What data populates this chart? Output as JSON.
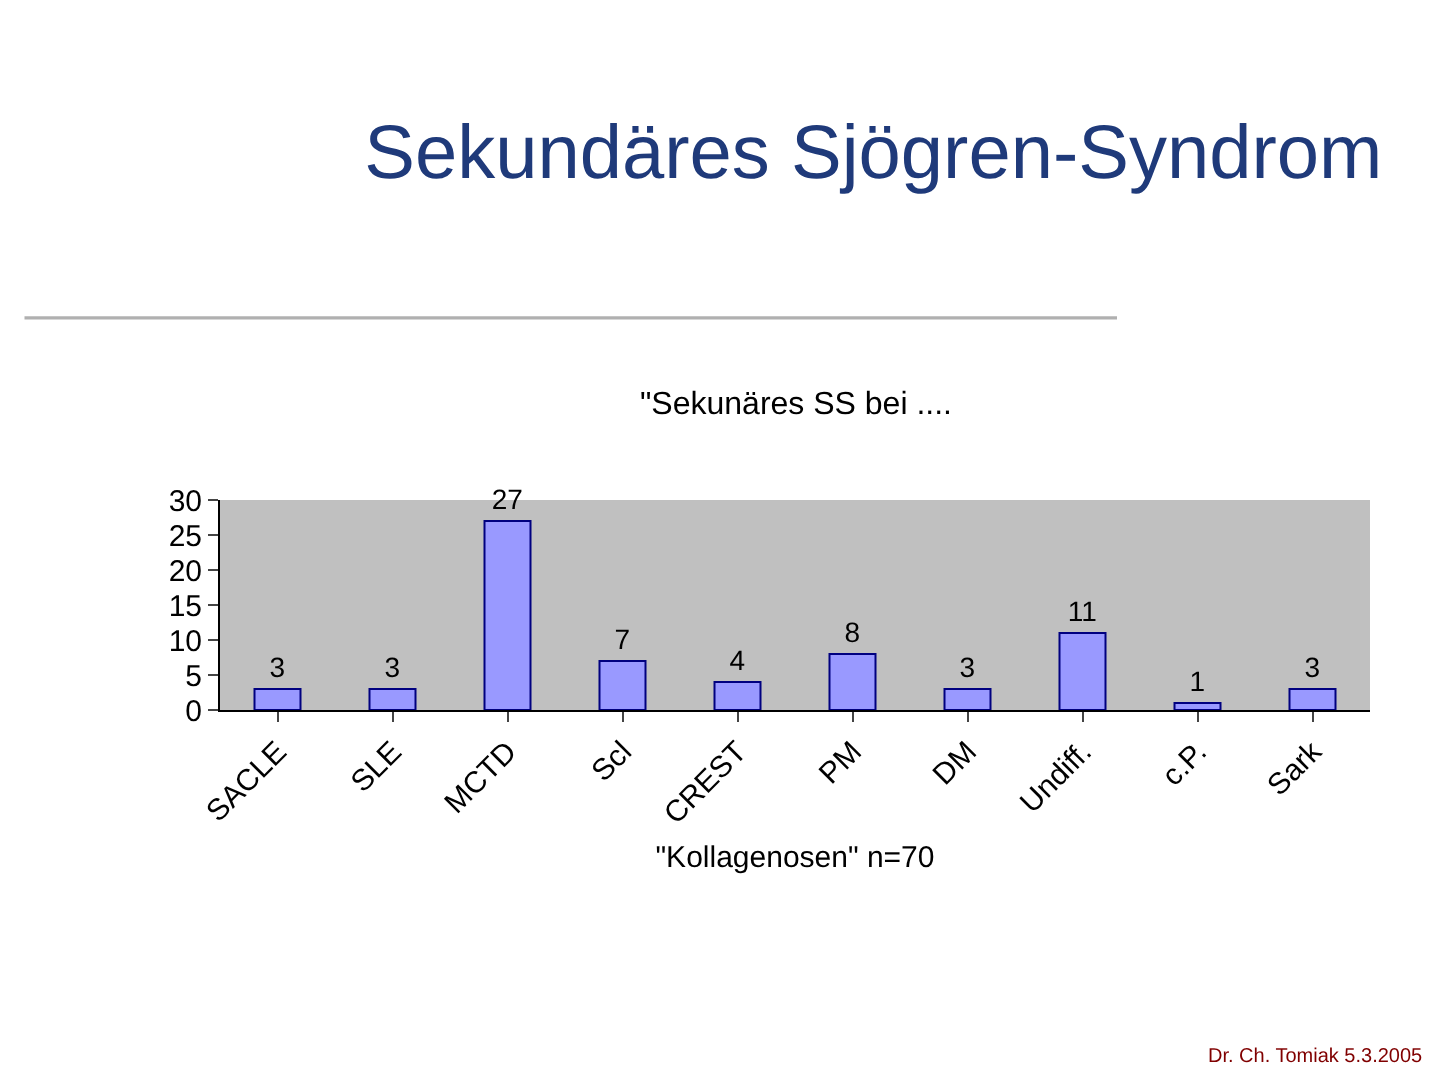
{
  "chart_data": {
    "type": "bar",
    "title": "Sekundäres Sjögren-Syndrom",
    "subtitle": "\"Sekunäres SS bei ....",
    "xlabel": "\"Kollagenosen\" n=70",
    "categories": [
      "SACLE",
      "SLE",
      "MCTD",
      "Scl",
      "CREST",
      "PM",
      "DM",
      "Undiff.",
      "c.P.",
      "Sark"
    ],
    "values": [
      3,
      3,
      27,
      7,
      4,
      8,
      3,
      11,
      1,
      3
    ],
    "color": "#9999ff",
    "ylim": [
      0,
      30
    ],
    "yticks": [
      0,
      5,
      10,
      15,
      20,
      25,
      30
    ],
    "grid": false,
    "legend": false,
    "data_labels": true,
    "annotations": [
      "Dr. Ch. Tomiak 5.3.2005"
    ]
  }
}
